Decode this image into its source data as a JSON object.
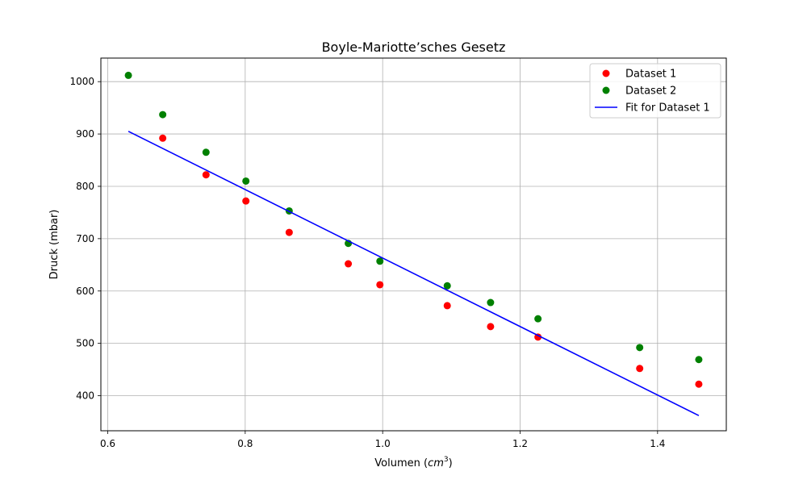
{
  "chart_data": {
    "type": "scatter",
    "title": "Boyle-Mariotte’sches Gesetz",
    "xlabel": "Volumen (",
    "xlabel_math": "cm",
    "xlabel_sup": "3",
    "xlabel_close": ")",
    "ylabel": "Druck (mbar)",
    "xlim": [
      0.59,
      1.5
    ],
    "ylim": [
      333,
      1045
    ],
    "xticks": [
      0.6,
      0.8,
      1.0,
      1.2,
      1.4
    ],
    "xtick_labels": [
      "0.6",
      "0.8",
      "1.0",
      "1.2",
      "1.4"
    ],
    "yticks": [
      400,
      500,
      600,
      700,
      800,
      900,
      1000
    ],
    "ytick_labels": [
      "400",
      "500",
      "600",
      "700",
      "800",
      "900",
      "1000"
    ],
    "grid": true,
    "legend_position": "top-right",
    "series": [
      {
        "name": "Dataset 1",
        "kind": "scatter",
        "color": "#ff0000",
        "x": [
          0.68,
          0.743,
          0.801,
          0.864,
          0.95,
          0.996,
          1.094,
          1.157,
          1.226,
          1.374,
          1.46
        ],
        "y": [
          892,
          822,
          772,
          712,
          652,
          612,
          572,
          532,
          512,
          452,
          422
        ]
      },
      {
        "name": "Dataset 2",
        "kind": "scatter",
        "color": "#008000",
        "x": [
          0.63,
          0.68,
          0.743,
          0.801,
          0.864,
          0.95,
          0.996,
          1.094,
          1.157,
          1.226,
          1.374,
          1.46
        ],
        "y": [
          1012,
          937,
          865,
          810,
          753,
          691,
          657,
          610,
          578,
          547,
          492,
          469
        ]
      },
      {
        "name": "Fit for Dataset 1",
        "kind": "line",
        "color": "#0000ff",
        "x": [
          0.63,
          1.46
        ],
        "y": [
          905,
          362
        ]
      }
    ]
  }
}
